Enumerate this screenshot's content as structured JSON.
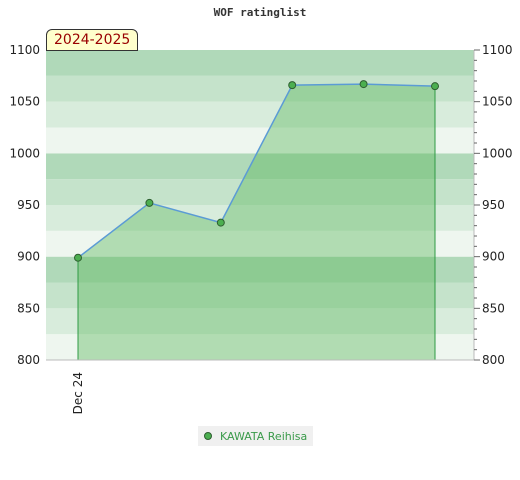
{
  "chart_data": {
    "type": "area",
    "title": "WOF ratinglist",
    "season_label": "2024-2025",
    "x_tick_labels": [
      "Dec 24"
    ],
    "y_ticks": [
      800,
      850,
      900,
      950,
      1000,
      1050,
      1100
    ],
    "ylim": [
      800,
      1100
    ],
    "series": [
      {
        "name": "KAWATA Reihisa",
        "values": [
          899,
          952,
          933,
          1066,
          1067,
          1065
        ]
      }
    ],
    "grid": true,
    "legend_position": "bottom",
    "colors": {
      "line": "#5b9bd5",
      "fill": "#5cb85c",
      "marker": "#4caf50"
    }
  }
}
